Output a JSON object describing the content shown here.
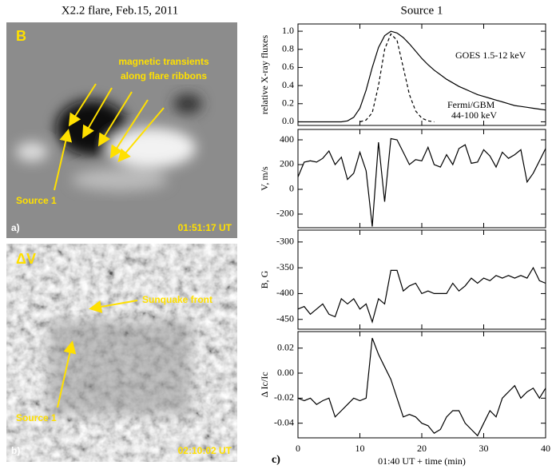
{
  "figure": {
    "title": "X2.2 flare, Feb.15, 2011",
    "panel_a": {
      "letter": "B",
      "annotations": [
        "magnetic transients",
        "along flare ribbons",
        "Source 1"
      ],
      "time": "01:51:17 UT",
      "label": "a)"
    },
    "panel_b": {
      "letter": "ΔV",
      "annotations": [
        "Sunquake front",
        "Source 1"
      ],
      "time": "02:10:02 UT",
      "label": "b)"
    },
    "panel_c_label": "c)"
  },
  "chart_data": [
    {
      "type": "line",
      "title": "Source 1",
      "ylabel": "relative X-ray fluxes",
      "annotations": [
        "GOES 1.5-12 keV",
        "Fermi/GBM",
        "44-100 keV"
      ],
      "x": [
        0,
        1,
        2,
        3,
        4,
        5,
        6,
        7,
        8,
        9,
        10,
        11,
        12,
        13,
        14,
        15,
        16,
        17,
        18,
        19,
        20,
        21,
        22,
        23,
        24,
        25,
        26,
        27,
        28,
        29,
        30,
        31,
        32,
        33,
        34,
        35,
        36,
        37,
        38,
        39,
        40
      ],
      "xlim": [
        0,
        40
      ],
      "xticks": [
        0,
        10,
        20,
        30,
        40
      ],
      "ylim": [
        -0.04,
        1.08
      ],
      "yticks": [
        {
          "value": 0,
          "label": "0.0"
        },
        0.2,
        0.4,
        0.6,
        0.8,
        {
          "value": 1,
          "label": "1.0"
        }
      ],
      "series": [
        {
          "color": "#000000",
          "dash": false,
          "values": [
            0,
            0,
            0,
            0,
            0,
            0,
            0,
            0,
            0.01,
            0.05,
            0.15,
            0.35,
            0.6,
            0.82,
            0.95,
            1.0,
            0.98,
            0.93,
            0.86,
            0.78,
            0.7,
            0.63,
            0.57,
            0.52,
            0.47,
            0.43,
            0.39,
            0.36,
            0.33,
            0.3,
            0.28,
            0.26,
            0.24,
            0.22,
            0.2,
            0.18,
            0.17,
            0.16,
            0.15,
            0.14,
            0.13
          ]
        },
        {
          "color": "#000000",
          "dash": true,
          "values": [
            null,
            null,
            null,
            null,
            null,
            null,
            null,
            null,
            null,
            null,
            0,
            0.02,
            0.1,
            0.4,
            0.8,
            0.97,
            0.9,
            0.6,
            0.3,
            0.12,
            0.04,
            0.01,
            0,
            null,
            null,
            null,
            null,
            null,
            null,
            null,
            null,
            null,
            null,
            null,
            null,
            null,
            null,
            null,
            null,
            null,
            null
          ]
        }
      ]
    },
    {
      "type": "line",
      "ylabel": "V, m/s",
      "x": [
        0,
        1,
        2,
        3,
        4,
        5,
        6,
        7,
        8,
        9,
        10,
        11,
        12,
        13,
        14,
        15,
        16,
        17,
        18,
        19,
        20,
        21,
        22,
        23,
        24,
        25,
        26,
        27,
        28,
        29,
        30,
        31,
        32,
        33,
        34,
        35,
        36,
        37,
        38,
        39,
        40
      ],
      "xlim": [
        0,
        40
      ],
      "xticks": [
        0,
        10,
        20,
        30,
        40
      ],
      "ylim": [
        -310,
        484
      ],
      "yticks": [
        -200,
        0,
        200,
        400
      ],
      "series": [
        {
          "color": "#000000",
          "dash": false,
          "values": [
            100,
            220,
            230,
            220,
            250,
            310,
            200,
            260,
            80,
            130,
            300,
            150,
            -300,
            380,
            -100,
            410,
            400,
            300,
            200,
            240,
            230,
            340,
            200,
            180,
            280,
            200,
            330,
            360,
            210,
            220,
            320,
            270,
            180,
            300,
            250,
            280,
            320,
            60,
            130,
            230,
            330
          ]
        }
      ]
    },
    {
      "type": "line",
      "ylabel": "B, G",
      "x": [
        0,
        1,
        2,
        3,
        4,
        5,
        6,
        7,
        8,
        9,
        10,
        11,
        12,
        13,
        14,
        15,
        16,
        17,
        18,
        19,
        20,
        21,
        22,
        23,
        24,
        25,
        26,
        27,
        28,
        29,
        30,
        31,
        32,
        33,
        34,
        35,
        36,
        37,
        38,
        39,
        40
      ],
      "xlim": [
        0,
        40
      ],
      "xticks": [
        0,
        10,
        20,
        30,
        40
      ],
      "ylim": [
        -469,
        -277
      ],
      "yticks": [
        -450,
        -400,
        -350,
        -300
      ],
      "series": [
        {
          "color": "#000000",
          "dash": false,
          "values": [
            -430,
            -425,
            -440,
            -430,
            -420,
            -440,
            -445,
            -410,
            -420,
            -410,
            -430,
            -420,
            -455,
            -410,
            -420,
            -355,
            -355,
            -395,
            -385,
            -380,
            -400,
            -395,
            -400,
            -400,
            -400,
            -380,
            -395,
            -385,
            -370,
            -380,
            -370,
            -375,
            -365,
            -370,
            -365,
            -370,
            -365,
            -370,
            -350,
            -375,
            -380
          ]
        }
      ]
    },
    {
      "type": "line",
      "ylabel": "Δ Ic/Ic",
      "xlabel": "01:40 UT + time (min)",
      "x": [
        0,
        1,
        2,
        3,
        4,
        5,
        6,
        7,
        8,
        9,
        10,
        11,
        12,
        13,
        14,
        15,
        16,
        17,
        18,
        19,
        20,
        21,
        22,
        23,
        24,
        25,
        26,
        27,
        28,
        29,
        30,
        31,
        32,
        33,
        34,
        35,
        36,
        37,
        38,
        39,
        40
      ],
      "xlim": [
        0,
        40
      ],
      "xticks": [
        0,
        10,
        20,
        30,
        40
      ],
      "ylim": [
        -0.0517,
        0.0332
      ],
      "yticks": [
        -0.04,
        -0.02,
        {
          "value": 0,
          "label": "0.00"
        },
        0.02
      ],
      "series": [
        {
          "color": "#000000",
          "dash": false,
          "values": [
            -0.02,
            -0.022,
            -0.02,
            -0.025,
            -0.022,
            -0.02,
            -0.035,
            -0.03,
            -0.025,
            -0.02,
            -0.022,
            -0.02,
            0.028,
            0.015,
            0.005,
            -0.005,
            -0.02,
            -0.035,
            -0.033,
            -0.035,
            -0.04,
            -0.042,
            -0.048,
            -0.045,
            -0.035,
            -0.03,
            -0.03,
            -0.04,
            -0.045,
            -0.05,
            -0.04,
            -0.03,
            -0.035,
            -0.02,
            -0.015,
            -0.01,
            -0.02,
            -0.015,
            -0.012,
            -0.02,
            -0.012
          ]
        }
      ]
    }
  ]
}
